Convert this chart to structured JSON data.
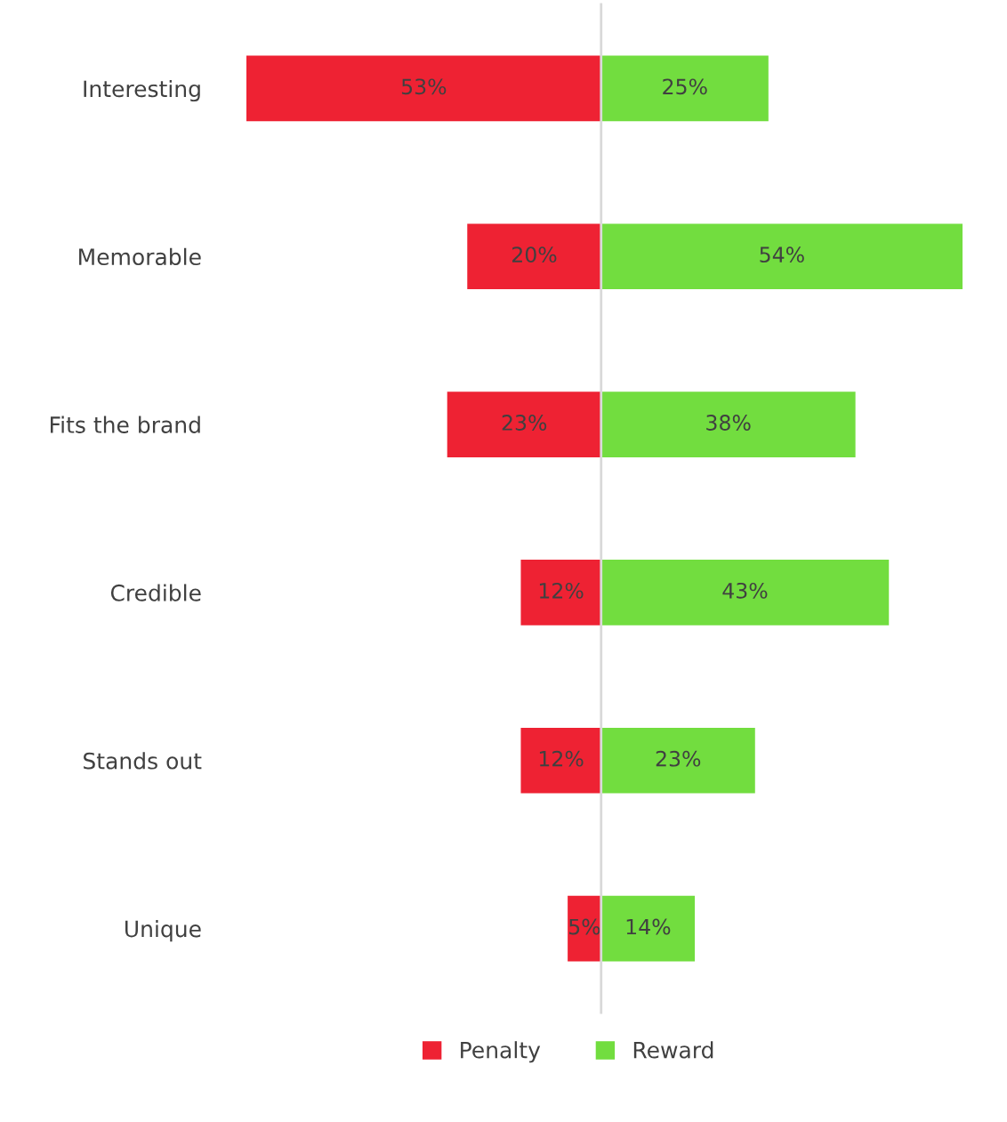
{
  "chart_data": [
    {
      "type": "bar",
      "orientation": "horizontal",
      "categories": [
        "Interesting",
        "Memorable",
        "Fits the brand",
        "Credible",
        "Stands out",
        "Unique"
      ],
      "series": [
        {
          "name": "Penalty",
          "color": "#ee2233",
          "values": [
            53,
            20,
            23,
            12,
            12,
            5
          ],
          "value_labels": [
            "53%",
            "20%",
            "23%",
            "12%",
            "12%",
            "5%"
          ]
        }
      ],
      "xlim": [
        53,
        0
      ],
      "tick_labels": "y",
      "grid": false,
      "legend": "bottom"
    },
    {
      "type": "bar",
      "orientation": "horizontal",
      "categories": [
        null,
        null,
        null,
        null,
        null,
        null
      ],
      "series": [
        {
          "name": "Reward",
          "color": "#72dd3f",
          "values": [
            25,
            54,
            38,
            43,
            23,
            14
          ],
          "value_labels": [
            "25%",
            "54%",
            "38%",
            "43%",
            "23%",
            "14%"
          ]
        }
      ],
      "xlim": [
        0,
        54
      ],
      "ref_lines": [
        {
          "axis": "x",
          "value": 0,
          "color": "#d9d9d9"
        }
      ],
      "tick_labels": false,
      "grid": false,
      "legend": "bottom"
    }
  ]
}
